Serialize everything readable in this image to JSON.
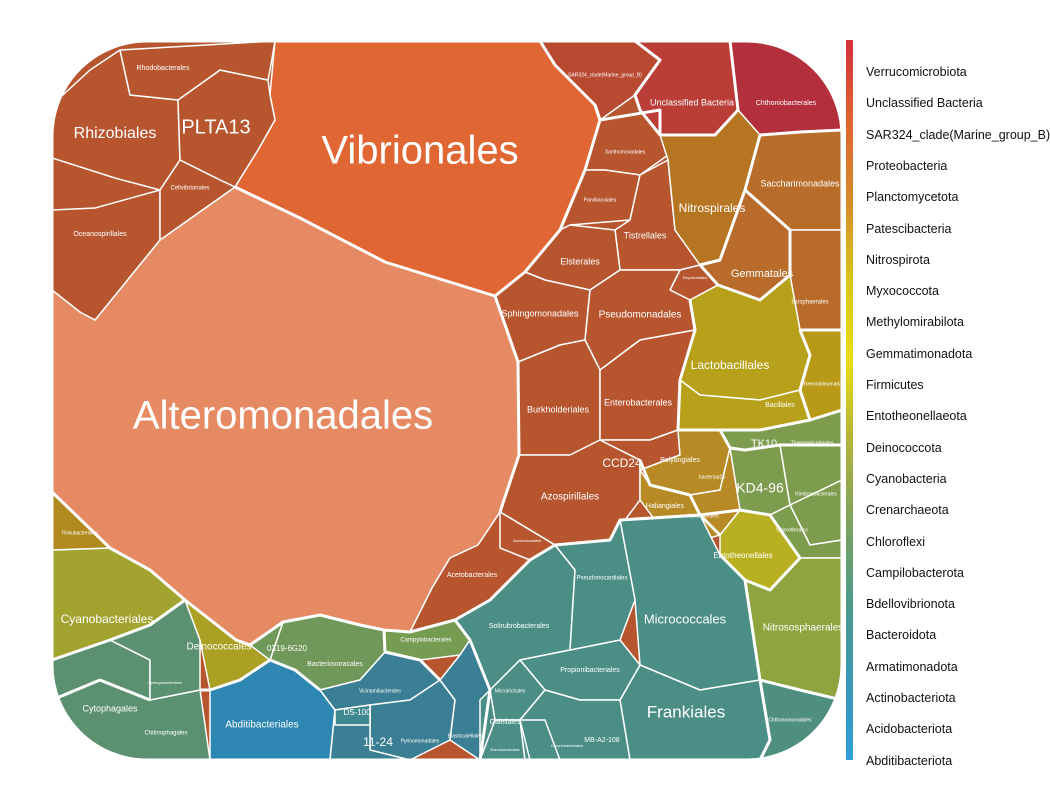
{
  "chart_data": {
    "type": "voronoi-treemap",
    "title": "",
    "legend": {
      "placement": "right",
      "phyla": [
        "Verrucomicrobiota",
        "Unclassified Bacteria",
        "SAR324_clade(Marine_group_B)",
        "Proteobacteria",
        "Planctomycetota",
        "Patescibacteria",
        "Nitrospirota",
        "Myxococcota",
        "Methylomirabilota",
        "Gemmatimonadota",
        "Firmicutes",
        "Entotheonellaeota",
        "Deinococcota",
        "Cyanobacteria",
        "Crenarchaeota",
        "Chloroflexi",
        "Campilobacterota",
        "Bdellovibrionota",
        "Bacteroidota",
        "Armatimonadota",
        "Actinobacteriota",
        "Acidobacteriota",
        "Abditibacteriota"
      ],
      "gradient": [
        "#d32f3c",
        "#e0632f",
        "#d68a2a",
        "#d9c51a",
        "#e8dc10",
        "#b3b33a",
        "#7ea35c",
        "#4f9a88",
        "#3a97b5",
        "#2f9ed6"
      ]
    },
    "cells": [
      {
        "order": "Alteromonadales",
        "phylum": "Proteobacteria",
        "color": "#e68a64",
        "label_size": "xl"
      },
      {
        "order": "Vibrionales",
        "phylum": "Proteobacteria",
        "color": "#e06634",
        "label_size": "xl"
      },
      {
        "order": "Rhizobiales",
        "phylum": "Proteobacteria",
        "color": "#b7562e",
        "label_size": "m"
      },
      {
        "order": "PLTA13",
        "phylum": "Proteobacteria",
        "color": "#b7562e",
        "label_size": "l"
      },
      {
        "order": "Rhodobacterales",
        "phylum": "Proteobacteria",
        "color": "#b7562e",
        "label_size": "xs"
      },
      {
        "order": "Oceanospirillales",
        "phylum": "Proteobacteria",
        "color": "#b7562e",
        "label_size": "xs"
      },
      {
        "order": "Cellvibrionales",
        "phylum": "Proteobacteria",
        "color": "#b7562e",
        "label_size": "xs"
      },
      {
        "order": "Xanthomonadales",
        "phylum": "Proteobacteria",
        "color": "#b7562e",
        "label_size": "xs"
      },
      {
        "order": "Parvibaculales",
        "phylum": "Proteobacteria",
        "color": "#b7562e",
        "label_size": "xs"
      },
      {
        "order": "Tistrellales",
        "phylum": "Proteobacteria",
        "color": "#b7562e",
        "label_size": "s"
      },
      {
        "order": "Elsterales",
        "phylum": "Proteobacteria",
        "color": "#b7562e",
        "label_size": "s"
      },
      {
        "order": "Reyranellales",
        "phylum": "Proteobacteria",
        "color": "#b7562e",
        "label_size": "xs"
      },
      {
        "order": "Sphingomonadales",
        "phylum": "Proteobacteria",
        "color": "#b7562e",
        "label_size": "s"
      },
      {
        "order": "Pseudomonadales",
        "phylum": "Proteobacteria",
        "color": "#b7562e",
        "label_size": "s"
      },
      {
        "order": "Burkholderiales",
        "phylum": "Proteobacteria",
        "color": "#b7562e",
        "label_size": "s"
      },
      {
        "order": "Enterobacterales",
        "phylum": "Proteobacteria",
        "color": "#b7562e",
        "label_size": "s"
      },
      {
        "order": "Azospirillales",
        "phylum": "Proteobacteria",
        "color": "#b7562e",
        "label_size": "s"
      },
      {
        "order": "CCD24",
        "phylum": "Proteobacteria",
        "color": "#b7562e",
        "label_size": "m"
      },
      {
        "order": "Acetobacterales",
        "phylum": "Proteobacteria",
        "color": "#b7562e",
        "label_size": "xs"
      },
      {
        "order": "Aeromonadales",
        "phylum": "Proteobacteria",
        "color": "#b7562e",
        "label_size": "xs"
      },
      {
        "order": "Chitinophagales",
        "phylum": "Bacteroidota",
        "color": "#5b9170",
        "label_size": "xs"
      },
      {
        "order": "Cytophagales",
        "phylum": "Bacteroidota",
        "color": "#5b9170",
        "label_size": "s"
      },
      {
        "order": "Sphingobacteriales",
        "phylum": "Bacteroidota",
        "color": "#5b9170",
        "label_size": "xs"
      },
      {
        "order": "SAR324_clade(Marine_group_B)",
        "phylum": "SAR324_clade(Marine_group_B)",
        "color": "#b84a32",
        "label_size": "xs"
      },
      {
        "order": "Unclassified Bacteria",
        "phylum": "Unclassified Bacteria",
        "color": "#ba3d37",
        "label_size": "s"
      },
      {
        "order": "Chthoniobacterales",
        "phylum": "Verrucomicrobiota",
        "color": "#b22f3b",
        "label_size": "xs"
      },
      {
        "order": "Nitrospirales",
        "phylum": "Nitrospirota",
        "color": "#b57521",
        "label_size": "m"
      },
      {
        "order": "Saccharimonadales",
        "phylum": "Patescibacteria",
        "color": "#b86d2a",
        "label_size": "s"
      },
      {
        "order": "Gemmatales",
        "phylum": "Planctomycetota",
        "color": "#b86b2a",
        "label_size": "m"
      },
      {
        "order": "Isosphaerales",
        "phylum": "Planctomycetota",
        "color": "#b86b2a",
        "label_size": "xs"
      },
      {
        "order": "Lactobacillales",
        "phylum": "Firmicutes",
        "color": "#b8a11a",
        "label_size": "m"
      },
      {
        "order": "Bacillales",
        "phylum": "Firmicutes",
        "color": "#b8a11a",
        "label_size": "xs"
      },
      {
        "order": "Gemmatimonadales",
        "phylum": "Gemmatimonadota",
        "color": "#b89a18",
        "label_size": "xs"
      },
      {
        "order": "Polyangiales",
        "phylum": "Myxococcota",
        "color": "#b88a26",
        "label_size": "xs"
      },
      {
        "order": "Haliangiales",
        "phylum": "Myxococcota",
        "color": "#b88a26",
        "label_size": "xs"
      },
      {
        "order": "bacteriap25",
        "phylum": "Myxococcota",
        "color": "#b88a26",
        "label_size": "xs"
      },
      {
        "order": "Myxococcales",
        "phylum": "Myxococcota",
        "color": "#b88a26",
        "label_size": "xs"
      },
      {
        "order": "Entotheonellales",
        "phylum": "Entotheonellaeota",
        "color": "#b8b020",
        "label_size": "xs"
      },
      {
        "order": "TK10",
        "phylum": "Chloroflexi",
        "color": "#7e9c4e",
        "label_size": "m"
      },
      {
        "order": "KD4-96",
        "phylum": "Chloroflexi",
        "color": "#7e9c4e",
        "label_size": "m"
      },
      {
        "order": "Thermomicrobiales",
        "phylum": "Chloroflexi",
        "color": "#7e9c4e",
        "label_size": "xs"
      },
      {
        "order": "Ktedonobacterales",
        "phylum": "Chloroflexi",
        "color": "#7e9c4e",
        "label_size": "xs"
      },
      {
        "order": "Chloroflexales",
        "phylum": "Chloroflexi",
        "color": "#7e9c4e",
        "label_size": "xs"
      },
      {
        "order": "Nitrososphaerales",
        "phylum": "Crenarchaeota",
        "color": "#8fa33f",
        "label_size": "s"
      },
      {
        "order": "Cyanobacteriales",
        "phylum": "Cyanobacteria",
        "color": "#a3a330",
        "label_size": "s"
      },
      {
        "order": "Deinococcales",
        "phylum": "Deinococcota",
        "color": "#aba023",
        "label_size": "s"
      },
      {
        "order": "Rokubacteriales",
        "phylum": "Methylomirabilota",
        "color": "#b08a1e",
        "label_size": "xs"
      },
      {
        "order": "Campylobacterales",
        "phylum": "Campilobacterota",
        "color": "#769c52",
        "label_size": "xs"
      },
      {
        "order": "Bacteriovoracales",
        "phylum": "Bdellovibrionota",
        "color": "#6f985a",
        "label_size": "xs"
      },
      {
        "order": "0319-6G20",
        "phylum": "Bdellovibrionota",
        "color": "#6f985a",
        "label_size": "xs"
      },
      {
        "order": "Abditibacteriales",
        "phylum": "Abditibacteriota",
        "color": "#2e87b2",
        "label_size": "s"
      },
      {
        "order": "Vicinamibacterales",
        "phylum": "Acidobacteriota",
        "color": "#3b7f94",
        "label_size": "xs"
      },
      {
        "order": "Pyrinomonadales",
        "phylum": "Acidobacteriota",
        "color": "#3b7f94",
        "label_size": "xs"
      },
      {
        "order": "Blastocatellales",
        "phylum": "Acidobacteriota",
        "color": "#3b7f94",
        "label_size": "xs"
      },
      {
        "order": "11-24",
        "phylum": "Acidobacteriota",
        "color": "#3b7f94",
        "label_size": "m"
      },
      {
        "order": "DS-100",
        "phylum": "Armatimonadota",
        "color": "#3f8a90",
        "label_size": "xs"
      },
      {
        "order": "Micrococcales",
        "phylum": "Actinobacteriota",
        "color": "#4a8e86",
        "label_size": "m"
      },
      {
        "order": "Frankiales",
        "phylum": "Actinobacteriota",
        "color": "#4a8e86",
        "label_size": "l"
      },
      {
        "order": "Solirubrobacterales",
        "phylum": "Actinobacteriota",
        "color": "#4a8e86",
        "label_size": "xs"
      },
      {
        "order": "Propionibacteriales",
        "phylum": "Actinobacteriota",
        "color": "#4a8e86",
        "label_size": "xs"
      },
      {
        "order": "Pseudonocardiales",
        "phylum": "Actinobacteriota",
        "color": "#4a8e86",
        "label_size": "xs"
      },
      {
        "order": "Microtrichales",
        "phylum": "Actinobacteriota",
        "color": "#4a8e86",
        "label_size": "xs"
      },
      {
        "order": "Gaiellales",
        "phylum": "Actinobacteriota",
        "color": "#4a8e86",
        "label_size": "xs"
      },
      {
        "order": "MB-A2-108",
        "phylum": "Actinobacteriota",
        "color": "#4a8e86",
        "label_size": "xs"
      },
      {
        "order": "Corynebacteriales",
        "phylum": "Actinobacteriota",
        "color": "#4a8e86",
        "label_size": "xs"
      },
      {
        "order": "Rubrobacterales",
        "phylum": "Actinobacteriota",
        "color": "#4a8e86",
        "label_size": "xs"
      },
      {
        "order": "Chthonomonadales",
        "phylum": "Armatimonadota",
        "color": "#4f8f80",
        "label_size": "xs"
      }
    ]
  }
}
